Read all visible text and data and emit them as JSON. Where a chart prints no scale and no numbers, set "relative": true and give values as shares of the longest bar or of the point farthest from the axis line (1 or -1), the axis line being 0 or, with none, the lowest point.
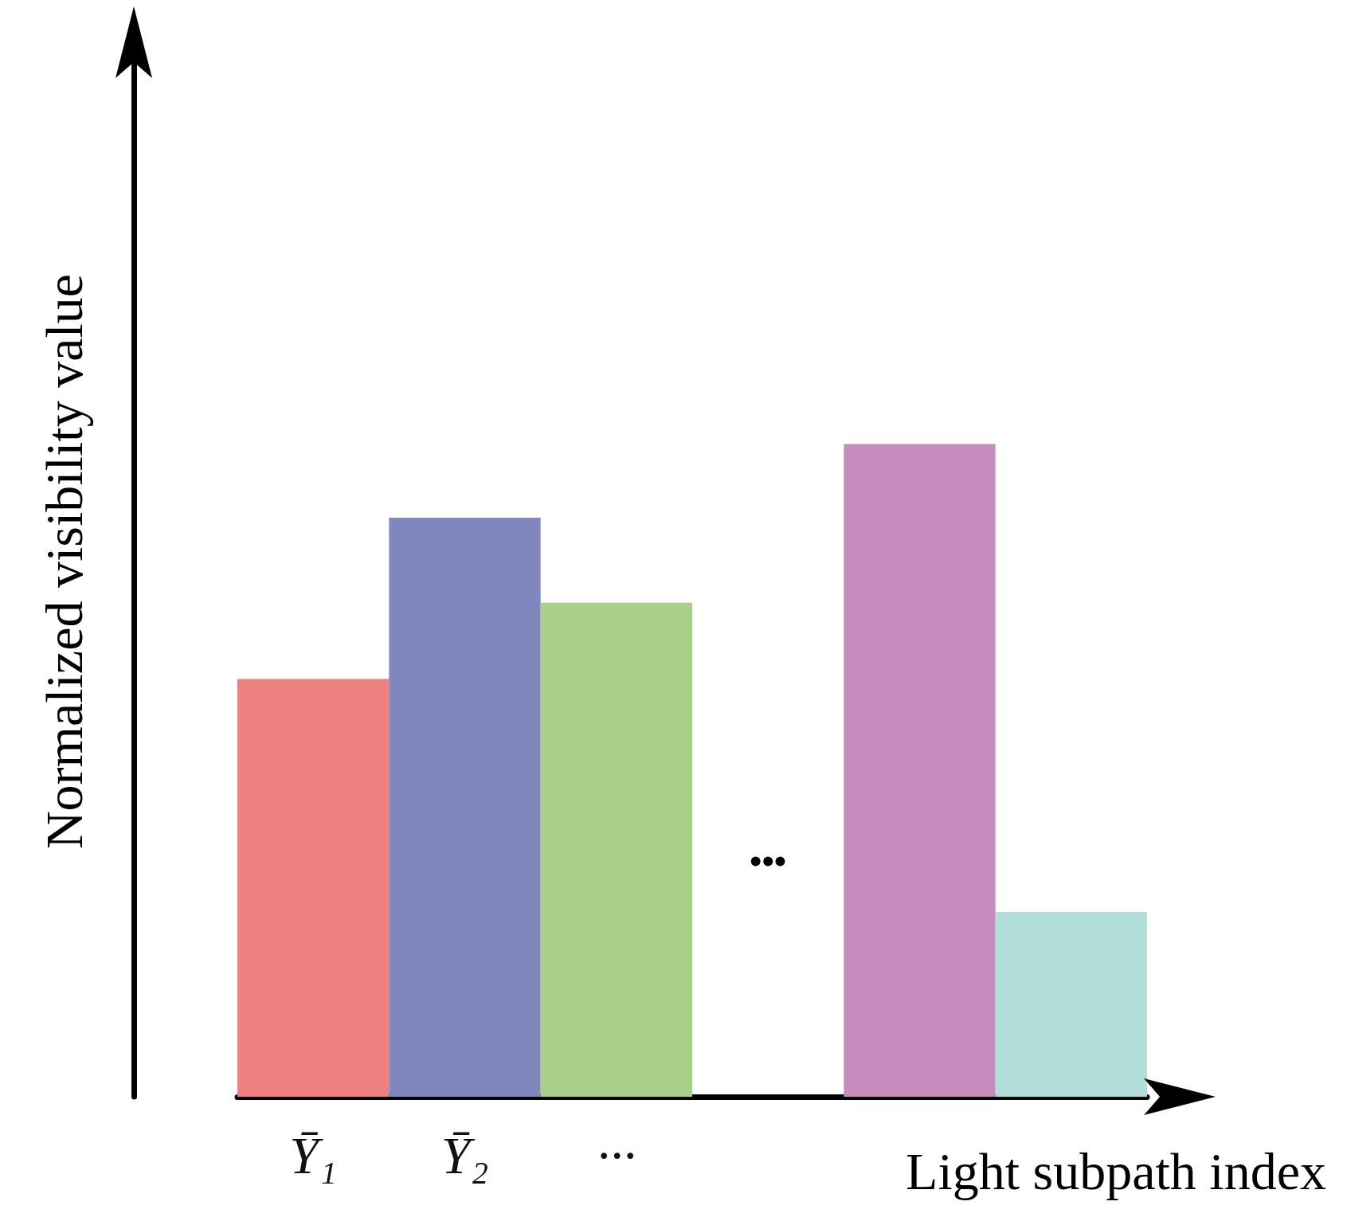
{
  "chart_data": {
    "type": "bar",
    "relative": true,
    "categories": [
      "Ȳ₁",
      "Ȳ₂",
      "···",
      null,
      null,
      null
    ],
    "values": [
      0.64,
      0.887,
      0.757,
      null,
      1,
      0.283
    ],
    "colors": [
      "#ee8080",
      "#8087bd",
      "#a8d088",
      null,
      "#c58cbd",
      "#b0dfda"
    ],
    "xlabel": "Light subpath index",
    "ylabel": "Normalized visibility value",
    "annotations": [
      "•••"
    ],
    "grid": false
  }
}
